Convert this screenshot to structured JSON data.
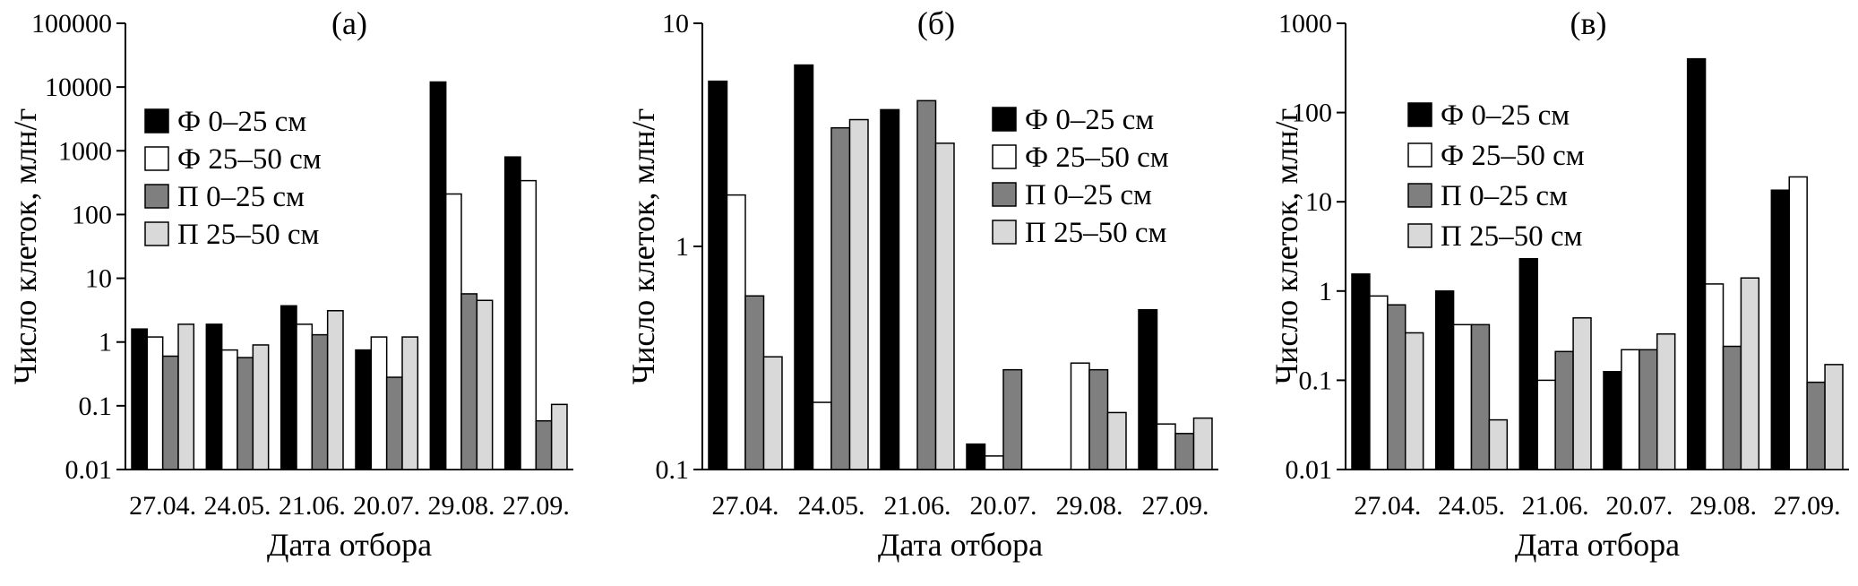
{
  "series_styles": [
    {
      "fill": "#000000"
    },
    {
      "fill": "#ffffff"
    },
    {
      "fill": "#7f7f7f"
    },
    {
      "fill": "#d9d9d9"
    }
  ],
  "chart_data": [
    {
      "type": "bar",
      "panel_label": "(а)",
      "title": "",
      "xlabel": "Дата отбора",
      "ylabel": "Число клеток, млн/г",
      "yscale": "log",
      "ylim": [
        0.01,
        100000
      ],
      "yticks": [
        "0.01",
        "0.1",
        "1",
        "10",
        "100",
        "1000",
        "10000",
        "100000"
      ],
      "categories": [
        "27.04.",
        "24.05.",
        "21.06.",
        "20.07.",
        "29.08.",
        "27.09."
      ],
      "legend_position": "center-left",
      "series": [
        {
          "name": "Ф 0–25 см",
          "values": [
            1.6,
            1.9,
            3.7,
            0.75,
            12000,
            800
          ]
        },
        {
          "name": "Ф 25–50 см",
          "values": [
            1.2,
            0.75,
            1.9,
            1.2,
            210,
            340
          ]
        },
        {
          "name": "П 0–25 см",
          "values": [
            0.6,
            0.57,
            1.3,
            0.28,
            5.7,
            0.058
          ]
        },
        {
          "name": "П 25–50 см",
          "values": [
            1.9,
            0.9,
            3.1,
            1.2,
            4.5,
            0.105
          ]
        }
      ]
    },
    {
      "type": "bar",
      "panel_label": "(б)",
      "title": "",
      "xlabel": "Дата отбора",
      "ylabel": "Число клеток, млн/г",
      "yscale": "log",
      "ylim": [
        0.1,
        10
      ],
      "yticks": [
        "0.1",
        "1",
        "10"
      ],
      "categories": [
        "27.04.",
        "24.05.",
        "21.06.",
        "20.07.",
        "29.08.",
        "27.09."
      ],
      "legend_position": "right",
      "series": [
        {
          "name": "Ф 0–25 см",
          "values": [
            5.5,
            6.5,
            4.1,
            0.13,
            null,
            0.52
          ]
        },
        {
          "name": "Ф 25–50 см",
          "values": [
            1.7,
            0.2,
            null,
            0.115,
            0.3,
            0.16
          ]
        },
        {
          "name": "П 0–25 см",
          "values": [
            0.6,
            3.4,
            4.5,
            0.28,
            0.28,
            0.145
          ]
        },
        {
          "name": "П 25–50 см",
          "values": [
            0.32,
            3.7,
            2.9,
            null,
            0.18,
            0.17
          ]
        }
      ]
    },
    {
      "type": "bar",
      "panel_label": "(в)",
      "title": "",
      "xlabel": "Дата отбора",
      "ylabel": "Число клеток, млн/г",
      "yscale": "log",
      "ylim": [
        0.01,
        1000
      ],
      "yticks": [
        "0.01",
        "0.1",
        "1",
        "10",
        "100",
        "1000"
      ],
      "categories": [
        "27.04.",
        "24.05.",
        "21.06.",
        "20.07.",
        "29.08.",
        "27.09."
      ],
      "legend_position": "top-left",
      "series": [
        {
          "name": "Ф 0–25 см",
          "values": [
            1.55,
            1.0,
            2.3,
            0.125,
            400,
            13.5
          ]
        },
        {
          "name": "Ф 25–50 см",
          "values": [
            0.88,
            0.42,
            0.1,
            0.22,
            1.2,
            19
          ]
        },
        {
          "name": "П 0–25 см",
          "values": [
            0.7,
            0.42,
            0.21,
            0.22,
            0.24,
            0.095
          ]
        },
        {
          "name": "П 25–50 см",
          "values": [
            0.34,
            0.036,
            0.5,
            0.33,
            1.4,
            0.15
          ]
        }
      ]
    }
  ]
}
